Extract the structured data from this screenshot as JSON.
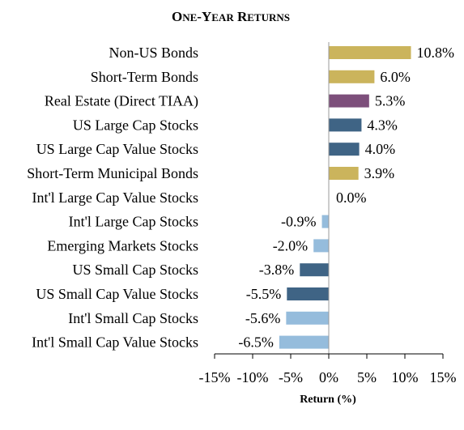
{
  "chart_data": {
    "type": "bar",
    "orientation": "horizontal",
    "title": "One-Year Returns",
    "xlabel": "Return (%)",
    "xlim": [
      -15,
      15
    ],
    "xticks": [
      -15,
      -10,
      -5,
      0,
      5,
      10,
      15
    ],
    "xtick_labels": [
      "-15%",
      "-10%",
      "-5%",
      "0%",
      "5%",
      "10%",
      "15%"
    ],
    "grid": false,
    "legend": "none",
    "categories": [
      "Non-US Bonds",
      "Short-Term Bonds",
      "Real Estate (Direct TIAA)",
      "US Large Cap Stocks",
      "US Large Cap Value Stocks",
      "Short-Term Municipal Bonds",
      "Int'l Large Cap Value Stocks",
      "Int'l Large Cap Stocks",
      "Emerging Markets Stocks",
      "US Small Cap Stocks",
      "US Small Cap Value Stocks",
      "Int'l Small Cap Stocks",
      "Int'l Small Cap Value Stocks"
    ],
    "values": [
      10.8,
      6.0,
      5.3,
      4.3,
      4.0,
      3.9,
      0.0,
      -0.9,
      -2.0,
      -3.8,
      -5.5,
      -5.6,
      -6.5
    ],
    "data_labels": [
      "10.8%",
      "6.0%",
      "5.3%",
      "4.3%",
      "4.0%",
      "3.9%",
      "0.0%",
      "-0.9%",
      "-2.0%",
      "-3.8%",
      "-5.5%",
      "-5.6%",
      "-6.5%"
    ],
    "bar_colors": [
      "#cbb45c",
      "#cbb45c",
      "#7d4f7b",
      "#3f6485",
      "#3f6485",
      "#cbb45c",
      "#cbb45c",
      "#95bcdc",
      "#95bcdc",
      "#3f6485",
      "#3f6485",
      "#95bcdc",
      "#95bcdc"
    ]
  }
}
